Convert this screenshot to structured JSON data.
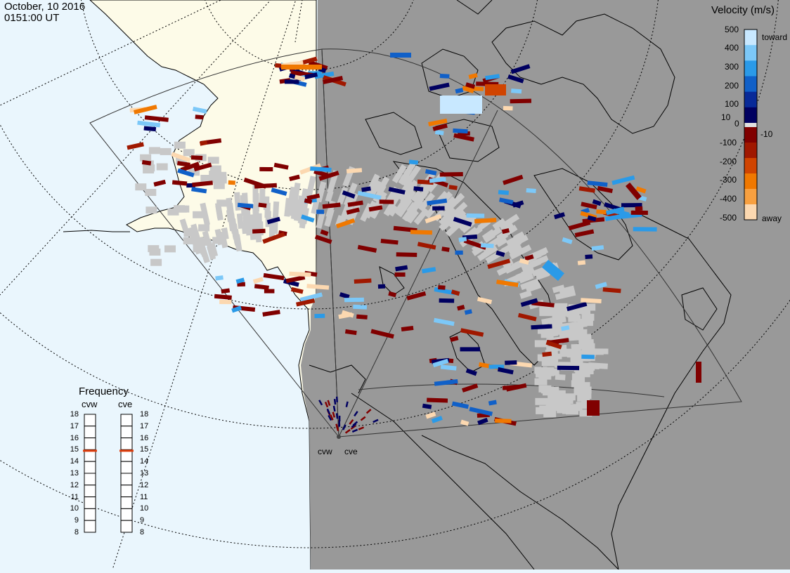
{
  "header": {
    "date": "October, 10 2016",
    "time": "0151:00 UT"
  },
  "velocity_legend": {
    "title": "Velocity (m/s)",
    "ticks": [
      "500",
      "400",
      "300",
      "200",
      "100",
      "10",
      "0",
      "-10",
      "-100",
      "-200",
      "-300",
      "-400",
      "-500"
    ],
    "toward_label": "toward",
    "away_label": "away",
    "colors": [
      "#c8e8ff",
      "#7cc8f8",
      "#2a9ae8",
      "#1060c8",
      "#082a98",
      "#000060",
      "#e0e0e0",
      "#800000",
      "#a01800",
      "#d04400",
      "#f07800",
      "#f8a040",
      "#fcd8b0"
    ]
  },
  "frequency_panel": {
    "title": "Frequency",
    "radars": [
      {
        "code": "cvw",
        "value_mhz": 15
      },
      {
        "code": "cve",
        "value_mhz": 15
      }
    ],
    "scale": [
      "18",
      "17",
      "16",
      "15",
      "14",
      "13",
      "12",
      "11",
      "10",
      "9",
      "8"
    ],
    "marker_color": "#e04010"
  },
  "map_labels": {
    "radar_west": "cvw",
    "radar_east": "cve"
  },
  "colors": {
    "ocean": "#eaf6fd",
    "land_day": "#fdfbe8",
    "night_shade": "#999999",
    "ground_scatter": "#c8c8c8"
  }
}
